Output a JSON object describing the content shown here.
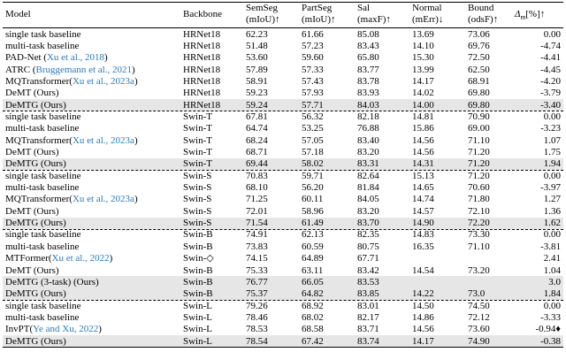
{
  "table": {
    "header": [
      [
        "Model"
      ],
      [
        "Backbone"
      ],
      [
        "SemSeg",
        "(mIoU)↑"
      ],
      [
        "PartSeg",
        "(mIoU)↑"
      ],
      [
        "Sal",
        "(maxF)↑"
      ],
      [
        "Normal",
        "(mErr)↓"
      ],
      [
        "Bound",
        "(odsF)↑"
      ],
      [
        "Δ",
        "m",
        "[%]↑"
      ]
    ],
    "groups": [
      {
        "rows": [
          [
            [
              "single task baseline"
            ],
            "HRNet18",
            "62.23",
            "61.66",
            "85.08",
            "13.69",
            "73.06",
            "0.00"
          ],
          [
            [
              "multi-task baseline"
            ],
            "HRNet18",
            "51.48",
            "57.23",
            "83.43",
            "14.10",
            "69.76",
            "-4.74"
          ],
          [
            [
              "PAD-Net (",
              "Xu et al., 2018",
              ")"
            ],
            "HRNet18",
            "53.60",
            "59.60",
            "65.80",
            "15.30",
            "72.50",
            "-4.41"
          ],
          [
            [
              "ATRC (",
              "Bruggemann et al., 2021",
              ")"
            ],
            "HRNet18",
            "57.89",
            "57.33",
            "83.77",
            "13.99",
            "62.50",
            "-4.45"
          ],
          [
            [
              "MQTransformer(",
              "Xu et al., 2023a",
              ")"
            ],
            "HRNet18",
            "58.91",
            "57.43",
            "83.78",
            "14.17",
            "68.91",
            "-4.20"
          ],
          [
            [
              "DeMT (Ours)"
            ],
            "HRNet18",
            "59.23",
            "57.93",
            "83.93",
            "14.02",
            "69.80",
            "-3.79"
          ],
          [
            [
              "DeMTG (Ours)"
            ],
            "HRNet18",
            "59.24",
            "57.71",
            "84.03",
            "14.00",
            "69.80",
            "-3.40"
          ]
        ],
        "shaded": [
          6
        ]
      },
      {
        "rows": [
          [
            [
              "single task baseline"
            ],
            "Swin-T",
            "67.81",
            "56.32",
            "82.18",
            "14.81",
            "70.90",
            "0.00"
          ],
          [
            [
              "multi-task baseline"
            ],
            "Swin-T",
            "64.74",
            "53.25",
            "76.88",
            "15.86",
            "69.00",
            "-3.23"
          ],
          [
            [
              "MQTransformer(",
              "Xu et al., 2023a",
              ")"
            ],
            "Swin-T",
            "68.24",
            "57.05",
            "83.40",
            "14.56",
            "71.10",
            "1.07"
          ],
          [
            [
              "DeMT (Ours)"
            ],
            "Swin-T",
            "68.71",
            "57.18",
            "83.20",
            "14.56",
            "71.20",
            "1.75"
          ],
          [
            [
              "DeMTG (Ours)"
            ],
            "Swin-T",
            "69.44",
            "58.02",
            "83.31",
            "14.31",
            "71.20",
            "1.94"
          ]
        ],
        "shaded": [
          4
        ]
      },
      {
        "rows": [
          [
            [
              "single task baseline"
            ],
            "Swin-S",
            "70.83",
            "59.71",
            "82.64",
            "15.13",
            "71.20",
            "0.00"
          ],
          [
            [
              "multi-task baseline"
            ],
            "Swin-S",
            "68.10",
            "56.20",
            "81.84",
            "14.65",
            "70.60",
            "-3.97"
          ],
          [
            [
              "MQTransformer(",
              "Xu et al., 2023a",
              ")"
            ],
            "Swin-S",
            "71.25",
            "60.11",
            "84.05",
            "14.74",
            "71.80",
            "1.27"
          ],
          [
            [
              "DeMT (Ours)"
            ],
            "Swin-S",
            "72.01",
            "58.96",
            "83.20",
            "14.57",
            "72.10",
            "1.36"
          ],
          [
            [
              "DeMTG (Ours)"
            ],
            "Swin-S",
            "71.54",
            "61.49",
            "83.70",
            "14.90",
            "72.20",
            "1.62"
          ]
        ],
        "shaded": [
          4
        ]
      },
      {
        "rows": [
          [
            [
              "single task baseline"
            ],
            "Swin-B",
            "74.91",
            "62.13",
            "82.35",
            "14.83",
            "73.30",
            "0.00"
          ],
          [
            [
              "multi-task baseline"
            ],
            "Swin-B",
            "73.83",
            "60.59",
            "80.75",
            "16.35",
            "71.10",
            "-3.81"
          ],
          [
            [
              "MTFormer(",
              "Xu et al., 2022",
              ")"
            ],
            "Swin-◇",
            "74.15",
            "64.89",
            "67.71",
            null,
            null,
            "2.41"
          ],
          [
            [
              "DeMT (Ours)"
            ],
            "Swin-B",
            "75.33",
            "63.11",
            "83.42",
            "14.54",
            "73.20",
            "1.04"
          ],
          [
            [
              "DeMTG (3-task) (Ours)"
            ],
            "Swin-B",
            "76.77",
            "66.05",
            "83.53",
            null,
            null,
            "3.0"
          ],
          [
            [
              "DeMTG (Ours)"
            ],
            "Swin-B",
            "75.37",
            "64.82",
            "83.85",
            "14.22",
            "73.0",
            "1.84"
          ]
        ],
        "shaded": [
          4,
          5
        ]
      },
      {
        "rows": [
          [
            [
              "single task baseline"
            ],
            "Swin-L",
            "79.26",
            "68.92",
            "83.01",
            "14.50",
            "74.50",
            "0.00"
          ],
          [
            [
              "multi-task baseline"
            ],
            "Swin-L",
            "78.46",
            "68.02",
            "82.17",
            "14.86",
            "72.12",
            "-3.33"
          ],
          [
            [
              "InvPT(",
              "Ye and Xu, 2022",
              ")"
            ],
            "Swin-L",
            "78.53",
            "68.58",
            "83.71",
            "14.56",
            "73.60",
            "-0.94♦"
          ],
          [
            [
              "DeMTG (Ours)"
            ],
            "Swin-L",
            "78.54",
            "67.42",
            "83.74",
            "14.17",
            "74.90",
            "-0.38"
          ]
        ],
        "shaded": [
          3
        ]
      }
    ]
  }
}
